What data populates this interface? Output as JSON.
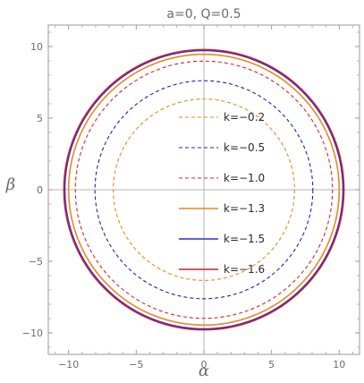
{
  "chart_data": {
    "type": "line",
    "title": "a=0, Q=0.5",
    "xlabel": "α",
    "ylabel": "β",
    "xlim": [
      -11.5,
      11.5
    ],
    "ylim": [
      -11.5,
      11.5
    ],
    "xticks": [
      -10,
      -5,
      0,
      5,
      10
    ],
    "yticks": [
      -10,
      -5,
      0,
      5,
      10
    ],
    "xtick_labels": [
      "−10",
      "−5",
      "0",
      "5",
      "10"
    ],
    "ytick_labels": [
      "−10",
      "−5",
      "0",
      "5",
      "10"
    ],
    "grid": false,
    "legend_position": "center-right",
    "series": [
      {
        "name": "k=−0.2",
        "radius": 6.7,
        "color": "#e8891c",
        "dash": true
      },
      {
        "name": "k=−0.5",
        "radius": 8.05,
        "color": "#1f1fcf",
        "dash": true
      },
      {
        "name": "k=−1.0",
        "radius": 9.5,
        "color": "#d8232a",
        "dash": true
      },
      {
        "name": "k=−1.3",
        "radius": 10.0,
        "color": "#e8891c",
        "dash": false
      },
      {
        "name": "k=−1.5",
        "radius": 10.28,
        "color": "#2a2ad8",
        "dash": false
      },
      {
        "name": "k=−1.6",
        "radius": 10.35,
        "color": "#c8232a",
        "dash": false
      }
    ]
  }
}
